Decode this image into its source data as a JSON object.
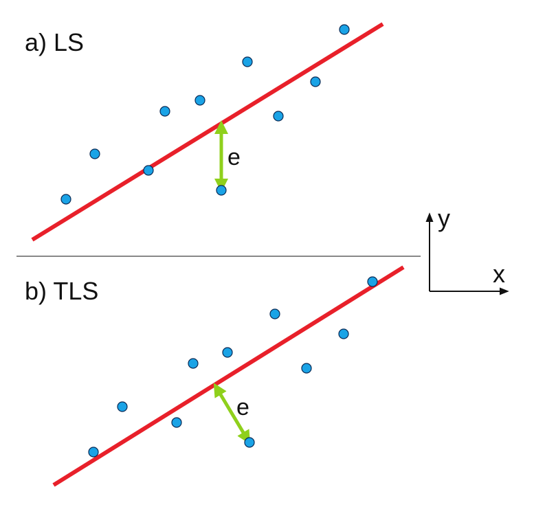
{
  "colors": {
    "fit_line": "#e8202a",
    "residual": "#8fd01c",
    "point_fill": "#1aa3e6",
    "point_stroke": "#0a2a55",
    "ink": "#111111"
  },
  "panels": [
    {
      "label": "a) LS",
      "error_label": "e",
      "method": "least squares (vertical residual)"
    },
    {
      "label": "b) TLS",
      "error_label": "e",
      "method": "total least squares (orthogonal residual)"
    }
  ],
  "axes": {
    "x_label": "x",
    "y_label": "y"
  }
}
